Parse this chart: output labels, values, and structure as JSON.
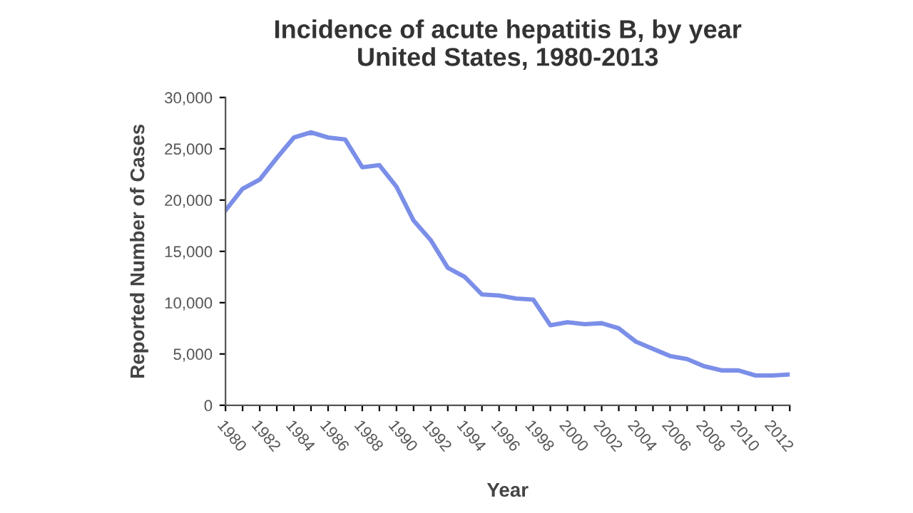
{
  "chart_data": {
    "type": "line",
    "title": "Incidence of acute hepatitis B, by year\nUnited States, 1980-2013",
    "xlabel": "Year",
    "ylabel": "Reported Number of Cases",
    "categories": [
      "1980",
      null,
      "1982",
      null,
      "1984",
      null,
      "1986",
      null,
      "1988",
      null,
      "1990",
      null,
      "1992",
      null,
      "1994",
      null,
      "1996",
      null,
      "1998",
      null,
      "2000",
      null,
      "2002",
      null,
      "2004",
      null,
      "2006",
      null,
      "2008",
      null,
      "2010",
      null,
      "2012",
      null
    ],
    "series": [
      {
        "color": "#7b8fe8",
        "values": [
          19000,
          21100,
          22000,
          24100,
          26100,
          26600,
          26100,
          25900,
          23200,
          23400,
          21300,
          18000,
          16100,
          13400,
          12500,
          10800,
          10700,
          10400,
          10300,
          7800,
          8100,
          7900,
          8000,
          7500,
          6200,
          5500,
          4800,
          4500,
          3800,
          3400,
          3400,
          2900,
          2900,
          3000
        ]
      }
    ],
    "ylim": [
      0,
      30000
    ],
    "yticks": [
      {
        "value": 0,
        "label": "0"
      },
      {
        "value": 5000,
        "label": "5,000"
      },
      {
        "value": 10000,
        "label": "10,000"
      },
      {
        "value": 15000,
        "label": "15,000"
      },
      {
        "value": 20000,
        "label": "20,000"
      },
      {
        "value": 25000,
        "label": "25,000"
      },
      {
        "value": 30000,
        "label": "30,000"
      }
    ],
    "grid": false,
    "legend": false,
    "marker": "none",
    "line_style": "solid"
  }
}
